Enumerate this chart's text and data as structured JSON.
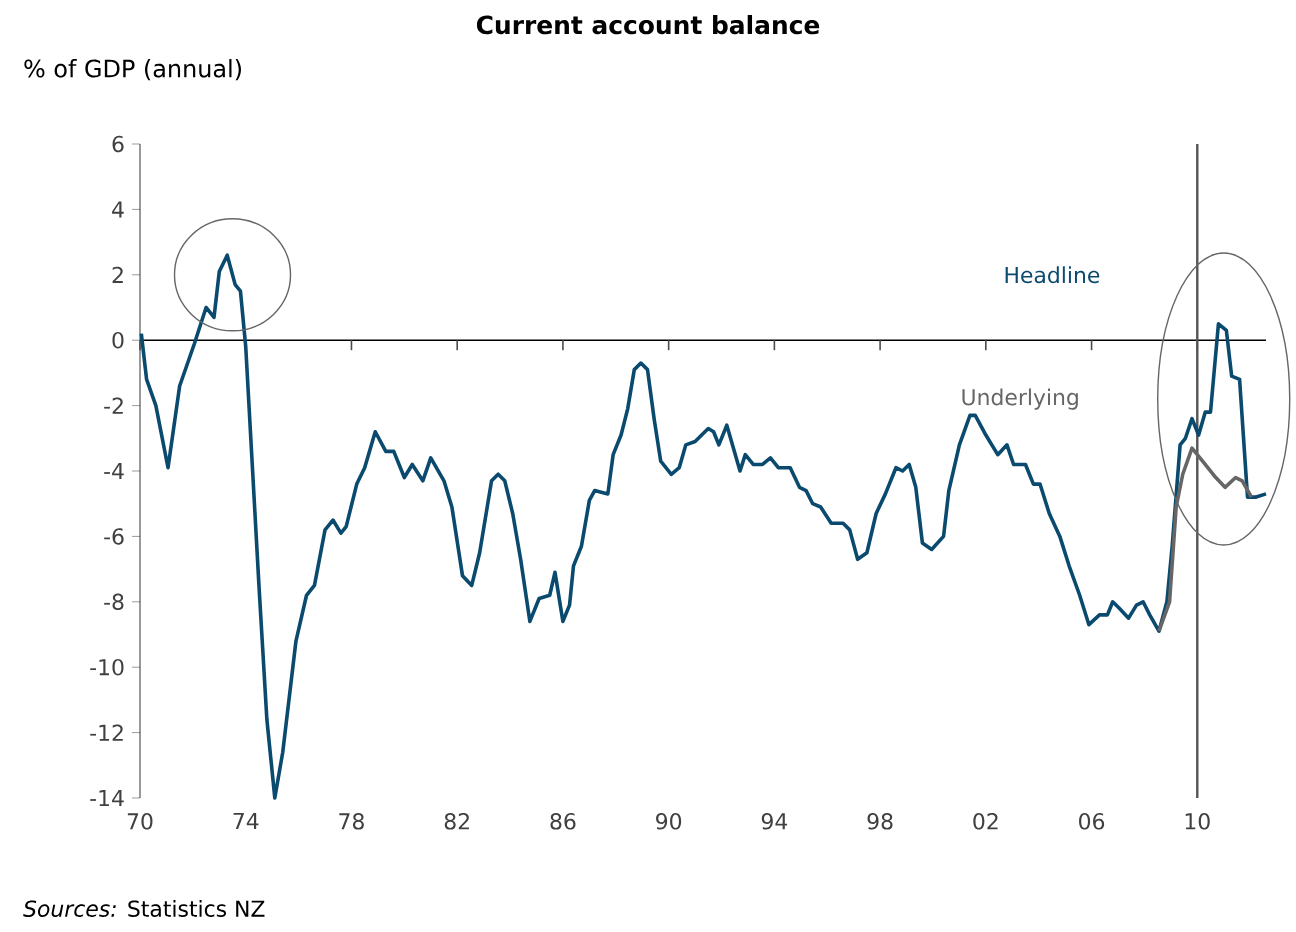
{
  "chart_data": {
    "type": "line",
    "title": "Current account balance",
    "ylabel": "% of GDP (annual)",
    "xlim": [
      1970,
      2012.6
    ],
    "ylim": [
      -14,
      6
    ],
    "xticks": [
      {
        "value": 1970,
        "label": "70"
      },
      {
        "value": 1974,
        "label": "74"
      },
      {
        "value": 1978,
        "label": "78"
      },
      {
        "value": 1982,
        "label": "82"
      },
      {
        "value": 1986,
        "label": "86"
      },
      {
        "value": 1990,
        "label": "90"
      },
      {
        "value": 1994,
        "label": "94"
      },
      {
        "value": 1998,
        "label": "98"
      },
      {
        "value": 2002,
        "label": "02"
      },
      {
        "value": 2006,
        "label": "06"
      },
      {
        "value": 2010,
        "label": "10"
      }
    ],
    "yticks": [
      6,
      4,
      2,
      0,
      -2,
      -4,
      -6,
      -8,
      -10,
      -12,
      -14
    ],
    "grid": false,
    "legend": false,
    "marker": "none",
    "line_style": "solid",
    "ref_lines": [
      {
        "axis": "x",
        "value": 2010,
        "color": "#555555"
      }
    ],
    "annotations": [
      "*Sources:* Statistics NZ"
    ],
    "series": [
      {
        "name": "Headline",
        "color": "#0b4a6f",
        "x": [
          1970.05,
          1970.25,
          1970.6,
          1971.06,
          1971.5,
          1972.06,
          1972.5,
          1972.8,
          1973.0,
          1973.3,
          1973.6,
          1973.8,
          1974.0,
          1974.5,
          1974.8,
          1975.1,
          1975.4,
          1975.9,
          1976.3,
          1976.6,
          1977.0,
          1977.3,
          1977.6,
          1977.8,
          1978.2,
          1978.5,
          1978.9,
          1979.3,
          1979.6,
          1980.0,
          1980.3,
          1980.7,
          1981.0,
          1981.5,
          1981.8,
          1982.2,
          1982.55,
          1982.85,
          1983.3,
          1983.55,
          1983.8,
          1984.1,
          1984.4,
          1984.75,
          1985.1,
          1985.5,
          1985.7,
          1986.0,
          1986.25,
          1986.4,
          1986.7,
          1987.0,
          1987.2,
          1987.7,
          1987.9,
          1988.2,
          1988.45,
          1988.7,
          1988.95,
          1989.2,
          1989.45,
          1989.7,
          1990.1,
          1990.4,
          1990.65,
          1991.0,
          1991.5,
          1991.7,
          1991.9,
          1992.2,
          1992.7,
          1992.9,
          1993.2,
          1993.55,
          1993.85,
          1994.15,
          1994.6,
          1994.95,
          1995.2,
          1995.45,
          1995.75,
          1996.15,
          1996.6,
          1996.85,
          1997.15,
          1997.5,
          1997.85,
          1998.2,
          1998.6,
          1998.85,
          1999.1,
          1999.35,
          1999.6,
          1999.95,
          2000.4,
          2000.6,
          2001.0,
          2001.4,
          2001.6,
          2002.0,
          2002.45,
          2002.8,
          2003.05,
          2003.5,
          2003.8,
          2004.05,
          2004.4,
          2004.8,
          2005.15,
          2005.55,
          2005.9,
          2006.3,
          2006.6,
          2006.8,
          2007.05,
          2007.4,
          2007.7,
          2007.95,
          2008.2,
          2008.55,
          2008.85,
          2009.05,
          2009.35,
          2009.55,
          2009.8,
          2010.05,
          2010.3,
          2010.5,
          2010.8,
          2011.1,
          2011.3,
          2011.6,
          2011.9,
          2012.2,
          2012.6
        ],
        "values": [
          0.2,
          -1.2,
          -2.0,
          -3.9,
          -1.4,
          -0.1,
          1.0,
          0.7,
          2.1,
          2.6,
          1.7,
          1.5,
          -0.2,
          -7.5,
          -11.6,
          -14.0,
          -12.6,
          -9.2,
          -7.8,
          -7.5,
          -5.8,
          -5.5,
          -5.9,
          -5.7,
          -4.4,
          -3.9,
          -2.8,
          -3.4,
          -3.4,
          -4.2,
          -3.8,
          -4.3,
          -3.6,
          -4.3,
          -5.1,
          -7.2,
          -7.5,
          -6.5,
          -4.3,
          -4.1,
          -4.3,
          -5.3,
          -6.7,
          -8.6,
          -7.9,
          -7.8,
          -7.1,
          -8.6,
          -8.1,
          -6.9,
          -6.3,
          -4.9,
          -4.6,
          -4.7,
          -3.5,
          -2.9,
          -2.1,
          -0.9,
          -0.7,
          -0.9,
          -2.4,
          -3.7,
          -4.1,
          -3.9,
          -3.2,
          -3.1,
          -2.7,
          -2.8,
          -3.2,
          -2.6,
          -4.0,
          -3.5,
          -3.8,
          -3.8,
          -3.6,
          -3.9,
          -3.9,
          -4.5,
          -4.6,
          -5.0,
          -5.1,
          -5.6,
          -5.6,
          -5.8,
          -6.7,
          -6.5,
          -5.3,
          -4.7,
          -3.9,
          -4.0,
          -3.8,
          -4.5,
          -6.2,
          -6.4,
          -6.0,
          -4.6,
          -3.2,
          -2.3,
          -2.3,
          -2.9,
          -3.5,
          -3.2,
          -3.8,
          -3.8,
          -4.4,
          -4.4,
          -5.3,
          -6.0,
          -6.9,
          -7.8,
          -8.7,
          -8.4,
          -8.4,
          -8.0,
          -8.2,
          -8.5,
          -8.1,
          -8.0,
          -8.4,
          -8.9,
          -8.0,
          -6.3,
          -3.2,
          -3.0,
          -2.4,
          -2.9,
          -2.2,
          -2.2,
          0.5,
          0.3,
          -1.1,
          -1.2,
          -4.8,
          -4.8,
          -4.7
        ]
      },
      {
        "name": "Underlying",
        "color": "#666666",
        "x": [
          2008.55,
          2008.95,
          2009.2,
          2009.45,
          2009.8,
          2010.2,
          2010.7,
          2011.05,
          2011.45,
          2011.7,
          2012.05
        ],
        "values": [
          -8.9,
          -8.0,
          -5.1,
          -4.1,
          -3.3,
          -3.7,
          -4.2,
          -4.5,
          -4.2,
          -4.3,
          -4.8
        ]
      }
    ]
  }
}
